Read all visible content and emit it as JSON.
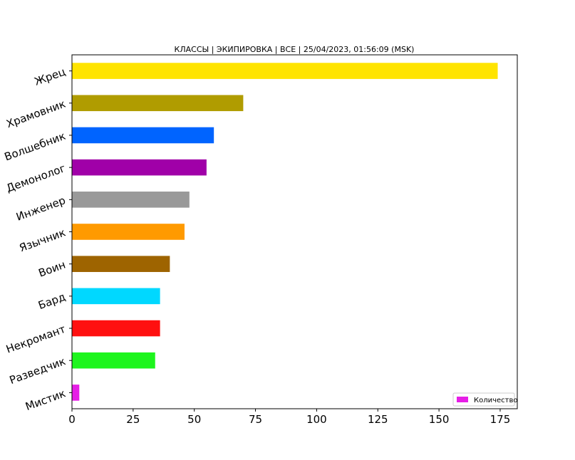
{
  "chart_data": {
    "type": "bar",
    "orientation": "horizontal",
    "title": "КЛАССЫ | ЭКИПИРОВКА | ВСЕ | 25/04/2023, 01:56:09 (MSK)",
    "xlabel": "",
    "ylabel": "",
    "xlim": [
      0,
      182
    ],
    "xticks": [
      0,
      25,
      50,
      75,
      100,
      125,
      150,
      175
    ],
    "categories": [
      "Мистик",
      "Разведчик",
      "Некромант",
      "Бард",
      "Воин",
      "Язычник",
      "Инженер",
      "Демонолог",
      "Волшебник",
      "Храмовник",
      "Жрец"
    ],
    "values": [
      3,
      34,
      36,
      36,
      40,
      46,
      48,
      55,
      58,
      70,
      174
    ],
    "colors": [
      "#e61ee6",
      "#1ef51e",
      "#ff1010",
      "#00d8ff",
      "#9e6400",
      "#ff9a00",
      "#999999",
      "#a000a8",
      "#0064ff",
      "#b09c00",
      "#ffe400"
    ],
    "legend": {
      "label": "Количество",
      "color": "#e61ee6",
      "position": "lower-right"
    },
    "grid": false
  }
}
